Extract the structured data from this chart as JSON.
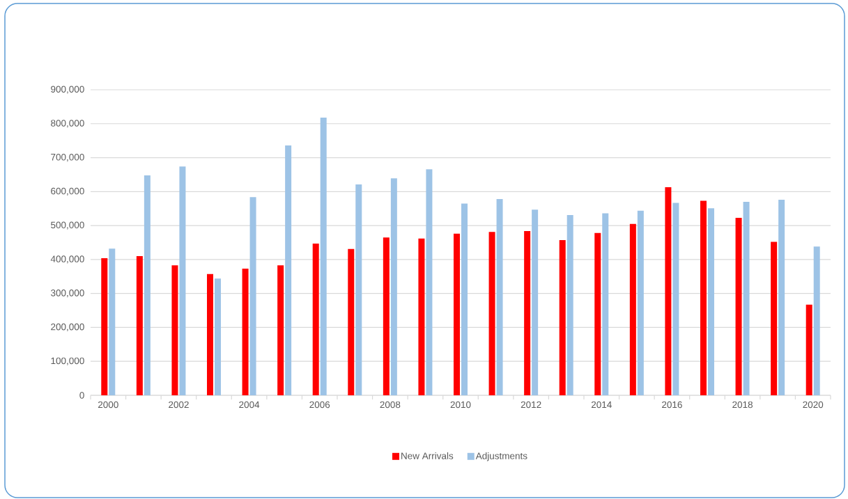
{
  "chart_data": {
    "type": "bar",
    "categories": [
      "2000",
      null,
      "2002",
      null,
      "2004",
      null,
      "2006",
      null,
      "2008",
      null,
      "2010",
      null,
      "2012",
      null,
      "2014",
      null,
      "2016",
      null,
      "2018",
      null,
      "2020"
    ],
    "series": [
      {
        "name": "New Arrivals",
        "color": "#ff0000",
        "values": [
          404000,
          410000,
          383000,
          357000,
          373000,
          383000,
          447000,
          431000,
          465000,
          462000,
          476000,
          481000,
          484000,
          457000,
          478000,
          505000,
          613000,
          573000,
          523000,
          452000,
          267000
        ]
      },
      {
        "name": "Adjustments",
        "color": "#9dc3e6",
        "values": [
          432000,
          648000,
          674000,
          344000,
          584000,
          736000,
          818000,
          621000,
          639000,
          666000,
          565000,
          578000,
          547000,
          531000,
          536000,
          544000,
          567000,
          551000,
          570000,
          576000,
          438000
        ]
      }
    ],
    "ylim": [
      0,
      900000
    ],
    "yticks": [
      {
        "value": 0,
        "label": "0"
      },
      {
        "value": 100000,
        "label": "100,000"
      },
      {
        "value": 200000,
        "label": "200,000"
      },
      {
        "value": 300000,
        "label": "300,000"
      },
      {
        "value": 400000,
        "label": "400,000"
      },
      {
        "value": 500000,
        "label": "500,000"
      },
      {
        "value": 600000,
        "label": "600,000"
      },
      {
        "value": 700000,
        "label": "700,000"
      },
      {
        "value": 800000,
        "label": "800,000"
      },
      {
        "value": 900000,
        "label": "900,000"
      }
    ],
    "grid": "y",
    "legend": "bottom"
  }
}
